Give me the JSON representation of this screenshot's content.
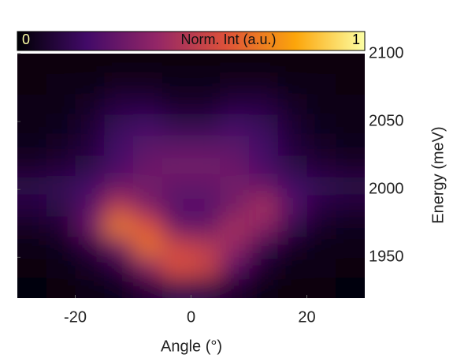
{
  "chart_data": {
    "type": "heatmap",
    "x_label": "Angle (°)",
    "y_label": "Energy (meV)",
    "x": [
      -27.5,
      -22.5,
      -17.5,
      -12.5,
      -7.5,
      -2.5,
      2.5,
      7.5,
      12.5,
      17.5,
      22.5,
      27.5
    ],
    "y": [
      2092.5,
      2077.5,
      2062.5,
      2047.5,
      2032.5,
      2017.5,
      2002.5,
      1987.5,
      1972.5,
      1957.5,
      1942.5,
      1927.5
    ],
    "z": [
      [
        0.02,
        0.02,
        0.02,
        0.02,
        0.02,
        0.02,
        0.02,
        0.02,
        0.02,
        0.02,
        0.02,
        0.02
      ],
      [
        0.02,
        0.03,
        0.04,
        0.06,
        0.06,
        0.05,
        0.05,
        0.06,
        0.06,
        0.04,
        0.03,
        0.02
      ],
      [
        0.03,
        0.04,
        0.07,
        0.12,
        0.12,
        0.08,
        0.08,
        0.12,
        0.12,
        0.07,
        0.04,
        0.03
      ],
      [
        0.04,
        0.05,
        0.09,
        0.17,
        0.2,
        0.15,
        0.15,
        0.2,
        0.17,
        0.09,
        0.05,
        0.04
      ],
      [
        0.05,
        0.07,
        0.11,
        0.2,
        0.26,
        0.26,
        0.26,
        0.26,
        0.2,
        0.11,
        0.07,
        0.05
      ],
      [
        0.08,
        0.1,
        0.14,
        0.22,
        0.3,
        0.32,
        0.32,
        0.3,
        0.22,
        0.14,
        0.1,
        0.08
      ],
      [
        0.14,
        0.16,
        0.2,
        0.3,
        0.32,
        0.28,
        0.28,
        0.32,
        0.3,
        0.2,
        0.16,
        0.14
      ],
      [
        0.12,
        0.14,
        0.25,
        0.5,
        0.35,
        0.25,
        0.25,
        0.32,
        0.45,
        0.25,
        0.12,
        0.1
      ],
      [
        0.06,
        0.1,
        0.3,
        0.7,
        0.6,
        0.3,
        0.28,
        0.45,
        0.38,
        0.15,
        0.07,
        0.05
      ],
      [
        0.03,
        0.05,
        0.12,
        0.3,
        0.68,
        0.55,
        0.5,
        0.4,
        0.15,
        0.06,
        0.04,
        0.03
      ],
      [
        0.02,
        0.03,
        0.06,
        0.12,
        0.35,
        0.6,
        0.55,
        0.25,
        0.08,
        0.04,
        0.03,
        0.02
      ],
      [
        0.01,
        0.02,
        0.03,
        0.05,
        0.1,
        0.15,
        0.14,
        0.08,
        0.04,
        0.02,
        0.02,
        0.01
      ]
    ],
    "xlim": [
      -30,
      30
    ],
    "xticks": [
      -20,
      0,
      20
    ],
    "ylim": [
      1920,
      2100
    ],
    "yticks": [
      1950,
      2000,
      2050,
      2100
    ],
    "colormap": [
      "#000004",
      "#420a68",
      "#932667",
      "#dd513a",
      "#fca50a",
      "#fcffa4"
    ],
    "colorbar": {
      "label": "Norm. Int (a.u.)",
      "lim": [
        0,
        1
      ],
      "ticks": [
        0,
        1
      ]
    }
  }
}
